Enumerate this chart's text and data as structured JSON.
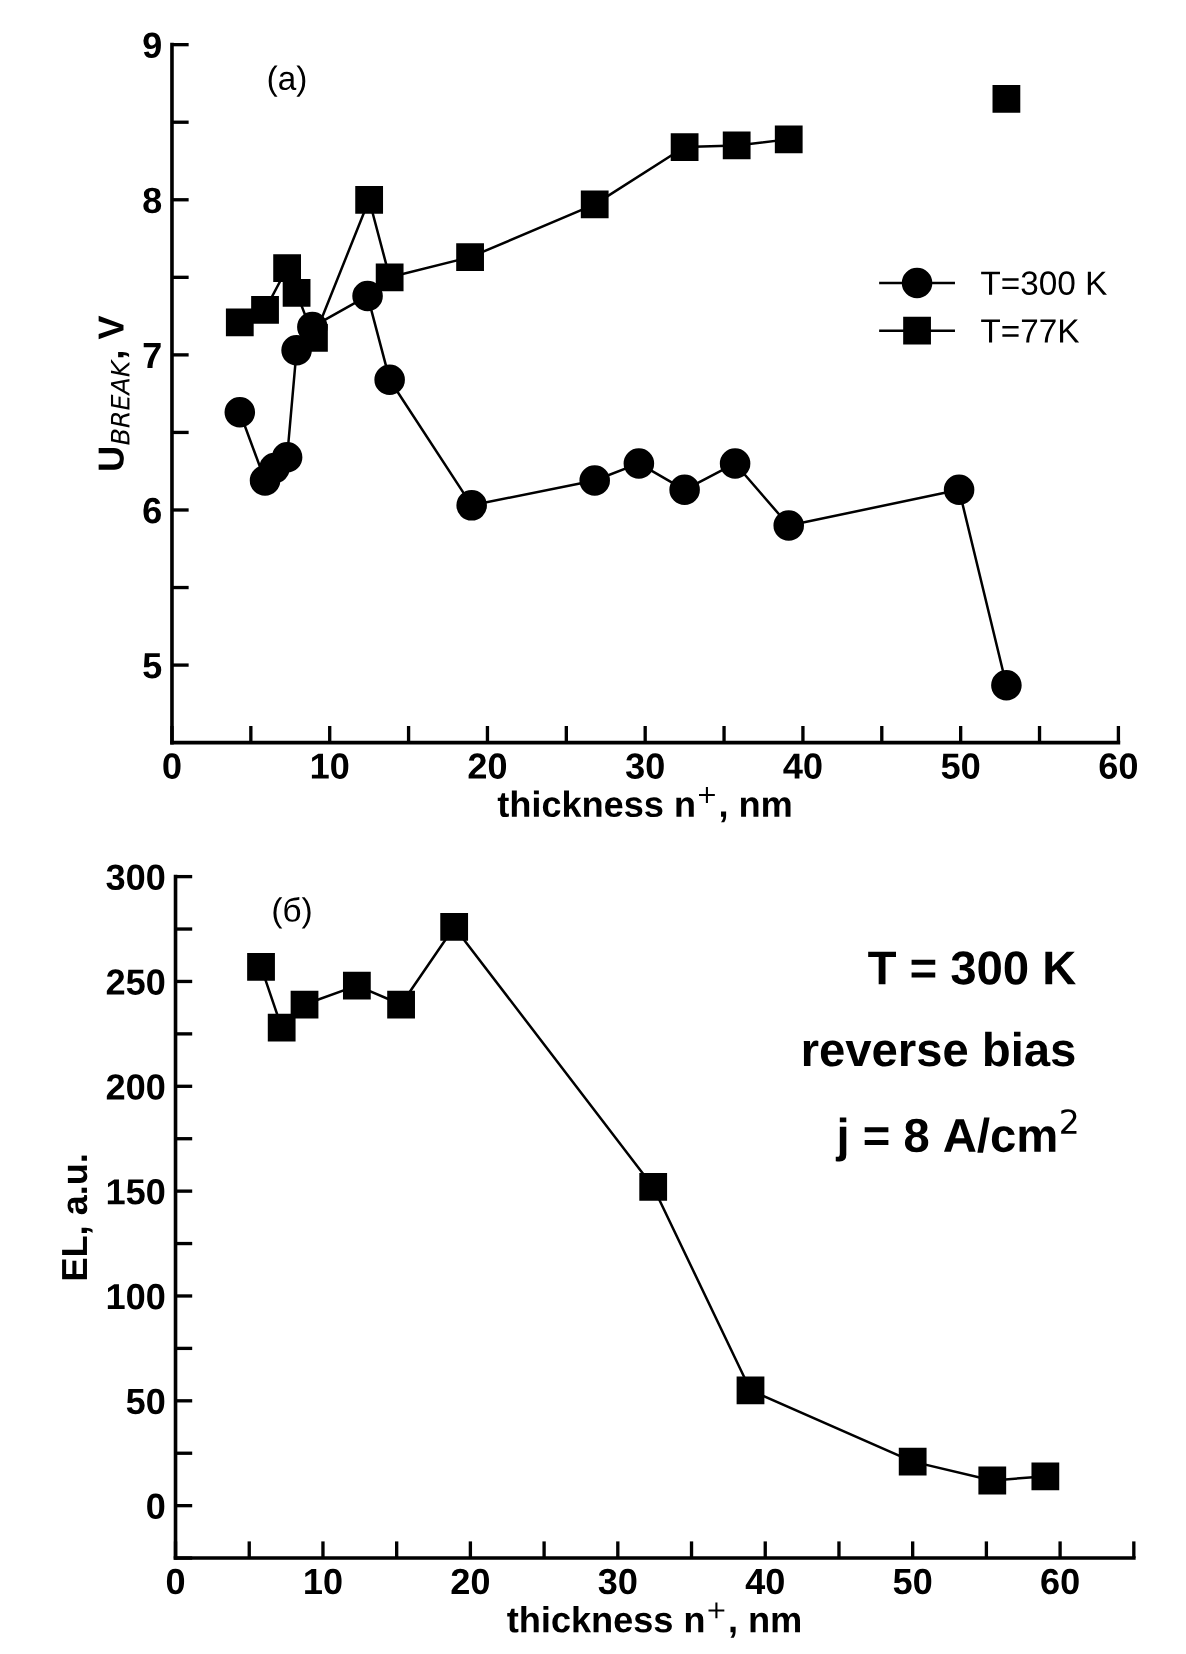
{
  "chart_data": [
    {
      "type": "line",
      "xlabel": "thickness n$^{+}$, nm",
      "ylabel": "U$_{BREAK}$, V",
      "annotations": [
        "(a)"
      ],
      "xlim": [
        0,
        60
      ],
      "ylim": [
        4.5,
        9
      ],
      "xticks": [
        0,
        {
          "value": 5,
          "label": null
        },
        10,
        {
          "value": 15,
          "label": null
        },
        20,
        {
          "value": 25,
          "label": null
        },
        30,
        {
          "value": 35,
          "label": null
        },
        40,
        {
          "value": 45,
          "label": null
        },
        50,
        {
          "value": 55,
          "label": null
        },
        60
      ],
      "yticks": [
        5,
        {
          "value": 5.5,
          "label": null
        },
        6,
        {
          "value": 6.5,
          "label": null
        },
        7,
        {
          "value": 7.5,
          "label": null
        },
        8,
        {
          "value": 8.5,
          "label": null
        },
        9
      ],
      "grid": false,
      "legend": "right",
      "series": [
        {
          "name": "T=300 K",
          "color": "#000000",
          "marker": "circle",
          "x": [
            4.3,
            5.9,
            6.5,
            7.3,
            7.9,
            8.9,
            12.4,
            13.8,
            19.0,
            26.8,
            29.6,
            32.5,
            35.7,
            39.1,
            49.9,
            52.9
          ],
          "values": [
            6.63,
            6.19,
            6.27,
            6.34,
            7.03,
            7.18,
            7.38,
            6.84,
            6.03,
            6.19,
            6.3,
            6.13,
            6.3,
            5.9,
            6.13,
            4.87
          ]
        },
        {
          "name": "T=77K",
          "color": "#000000",
          "marker": "square",
          "x": [
            4.3,
            5.9,
            7.3,
            7.9,
            9.0,
            12.5,
            13.8,
            18.9,
            26.8,
            32.5,
            35.8,
            39.1,
            46.0,
            52.9
          ],
          "values": [
            7.21,
            7.29,
            7.56,
            7.4,
            7.11,
            8.0,
            7.5,
            7.63,
            7.97,
            8.34,
            8.35,
            8.39,
            null,
            8.65
          ]
        }
      ]
    },
    {
      "type": "line",
      "xlabel": "thickness n$^{+}$, nm",
      "ylabel": "EL, a.u.",
      "annotations": [
        "(б)",
        "T = 300 K",
        "reverse bias",
        "j = 8 A/cm$^{2}$"
      ],
      "xlim": [
        0,
        65
      ],
      "ylim": [
        -25,
        300
      ],
      "xticks": [
        0,
        {
          "value": 5,
          "label": null
        },
        10,
        {
          "value": 15,
          "label": null
        },
        20,
        {
          "value": 25,
          "label": null
        },
        30,
        {
          "value": 35,
          "label": null
        },
        40,
        {
          "value": 45,
          "label": null
        },
        50,
        {
          "value": 55,
          "label": null
        },
        60,
        {
          "value": 65,
          "label": null
        }
      ],
      "yticks": [
        {
          "value": -25,
          "label": null
        },
        0,
        {
          "value": 25,
          "label": null
        },
        50,
        {
          "value": 75,
          "label": null
        },
        100,
        {
          "value": 125,
          "label": null
        },
        150,
        {
          "value": 175,
          "label": null
        },
        200,
        {
          "value": 225,
          "label": null
        },
        250,
        {
          "value": 275,
          "label": null
        },
        300
      ],
      "grid": false,
      "legend": false,
      "series": [
        {
          "color": "#000000",
          "marker": "square",
          "x": [
            5.8,
            7.2,
            8.75,
            12.3,
            15.3,
            18.9,
            32.4,
            39.0,
            50.0,
            55.4,
            59.0
          ],
          "values": [
            257,
            228,
            239,
            248,
            239,
            276,
            152,
            55,
            21,
            12,
            14
          ]
        }
      ]
    }
  ]
}
